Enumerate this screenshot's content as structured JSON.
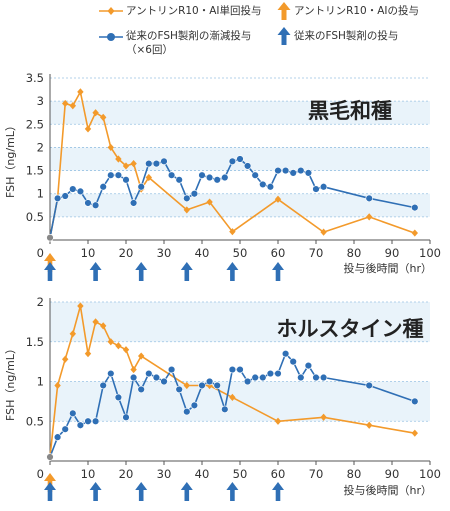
{
  "legend": {
    "orange_single": "アントリンR10・AI単回投与",
    "orange_arrow": "アントリンR10・AIの投与",
    "blue_multi_line1": "従来のFSH製剤の漸減投与",
    "blue_multi_line2": "（×6回）",
    "blue_arrow": "従来のFSH製剤の投与"
  },
  "colors": {
    "orange": "#f39a2b",
    "blue": "#2f6fb5",
    "grid": "#9bc3e3",
    "axis": "#555555",
    "band": "#e9f3fa"
  },
  "chart_data": [
    {
      "type": "line",
      "title": "黒毛和種",
      "xlabel": "投与後時間（hr）",
      "ylabel": "FSH（ng/mL）",
      "xlim": [
        0,
        100
      ],
      "ylim": [
        0,
        3.5
      ],
      "xticks": [
        0,
        10,
        20,
        30,
        40,
        50,
        60,
        70,
        80,
        90,
        100
      ],
      "yticks": [
        0.5,
        1,
        1.5,
        2,
        2.5,
        3,
        3.5
      ],
      "grid": true,
      "orange_arrows_at": [
        0
      ],
      "blue_arrows_at": [
        0,
        12,
        24,
        36,
        48,
        60
      ],
      "series": [
        {
          "name": "アントリンR10・AI単回投与",
          "color": "#f39a2b",
          "marker": "diamond",
          "x": [
            0,
            2,
            4,
            6,
            8,
            10,
            12,
            14,
            16,
            18,
            20,
            22,
            24,
            26,
            36,
            42,
            48,
            60,
            72,
            84,
            96
          ],
          "y": [
            0.05,
            0.9,
            2.95,
            2.9,
            3.2,
            2.4,
            2.75,
            2.65,
            2.0,
            1.75,
            1.6,
            1.65,
            1.1,
            1.35,
            0.65,
            0.82,
            0.18,
            0.88,
            0.17,
            0.5,
            0.15
          ]
        },
        {
          "name": "従来のFSH製剤の漸減投与（×6回）",
          "color": "#2f6fb5",
          "marker": "circle",
          "x": [
            0,
            2,
            4,
            6,
            8,
            10,
            12,
            14,
            16,
            18,
            20,
            22,
            24,
            26,
            28,
            30,
            32,
            34,
            36,
            38,
            40,
            42,
            44,
            46,
            48,
            50,
            52,
            54,
            56,
            58,
            60,
            62,
            64,
            66,
            68,
            70,
            72,
            84,
            96
          ],
          "y": [
            0.05,
            0.9,
            0.95,
            1.1,
            1.05,
            0.8,
            0.75,
            1.15,
            1.4,
            1.4,
            1.3,
            0.8,
            1.15,
            1.65,
            1.65,
            1.7,
            1.4,
            1.3,
            0.9,
            1.0,
            1.4,
            1.35,
            1.3,
            1.35,
            1.7,
            1.75,
            1.6,
            1.4,
            1.2,
            1.15,
            1.5,
            1.5,
            1.45,
            1.5,
            1.45,
            1.1,
            1.15,
            0.9,
            0.7
          ]
        }
      ]
    },
    {
      "type": "line",
      "title": "ホルスタイン種",
      "xlabel": "投与後時間（hr）",
      "ylabel": "FSH（ng/mL）",
      "xlim": [
        0,
        100
      ],
      "ylim": [
        0,
        2
      ],
      "xticks": [
        0,
        10,
        20,
        30,
        40,
        50,
        60,
        70,
        80,
        90,
        100
      ],
      "yticks": [
        0.5,
        1,
        1.5,
        2
      ],
      "grid": true,
      "orange_arrows_at": [
        0
      ],
      "blue_arrows_at": [
        0,
        12,
        24,
        36,
        48,
        60
      ],
      "series": [
        {
          "name": "アントリンR10・AI単回投与",
          "color": "#f39a2b",
          "marker": "diamond",
          "x": [
            0,
            2,
            4,
            6,
            8,
            10,
            12,
            14,
            16,
            18,
            20,
            22,
            24,
            36,
            42,
            48,
            60,
            72,
            84,
            96
          ],
          "y": [
            0.05,
            0.95,
            1.28,
            1.6,
            1.95,
            1.35,
            1.75,
            1.7,
            1.5,
            1.45,
            1.4,
            1.15,
            1.32,
            0.95,
            0.95,
            0.8,
            0.5,
            0.55,
            0.45,
            0.35
          ]
        },
        {
          "name": "従来のFSH製剤の漸減投与（×6回）",
          "color": "#2f6fb5",
          "marker": "circle",
          "x": [
            0,
            2,
            4,
            6,
            8,
            10,
            12,
            14,
            16,
            18,
            20,
            22,
            24,
            26,
            28,
            30,
            32,
            34,
            36,
            38,
            40,
            42,
            44,
            46,
            48,
            50,
            52,
            54,
            56,
            58,
            60,
            62,
            64,
            66,
            68,
            70,
            72,
            84,
            96
          ],
          "y": [
            0.05,
            0.3,
            0.4,
            0.6,
            0.45,
            0.5,
            0.5,
            0.95,
            1.1,
            0.8,
            0.55,
            1.05,
            0.9,
            1.1,
            1.05,
            1.0,
            1.15,
            0.9,
            0.62,
            0.7,
            0.95,
            1.0,
            0.95,
            0.65,
            1.15,
            1.15,
            1.0,
            1.05,
            1.05,
            1.1,
            1.1,
            1.35,
            1.25,
            1.05,
            1.2,
            1.05,
            1.05,
            0.95,
            0.75
          ]
        }
      ]
    }
  ]
}
